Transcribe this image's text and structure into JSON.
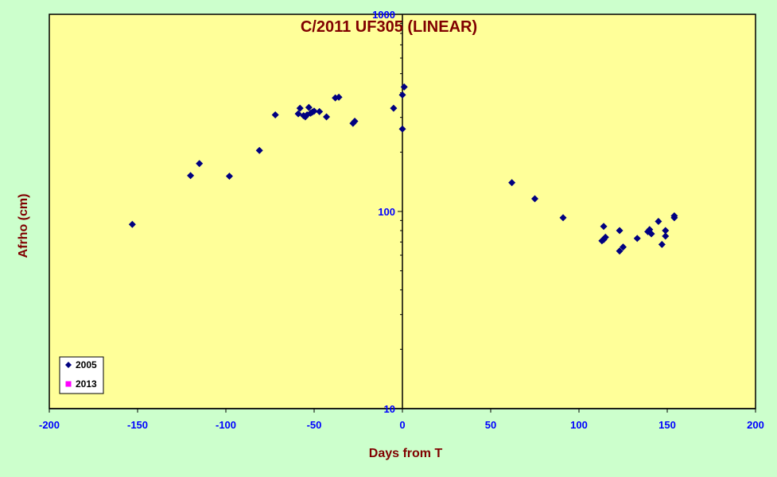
{
  "chart_data": {
    "type": "scatter",
    "title": "C/2011 UF305 (LINEAR)",
    "xlabel": "Days from T",
    "ylabel": "Afrho (cm)",
    "xlim": [
      -200,
      200
    ],
    "ylim": [
      10,
      1000
    ],
    "yscale": "log",
    "x_ticks": [
      "-200",
      "-150",
      "-100",
      "-50",
      "0",
      "50",
      "100",
      "150",
      "200"
    ],
    "y_ticks": [
      "10",
      "100",
      "1000"
    ],
    "grid": false,
    "legend_position": "bottom-left",
    "colors": {
      "background": "#ccffcc",
      "plot_area": "#ffff99",
      "title": "#800000",
      "tick_labels": "#0000ff",
      "series_2005": "#000080",
      "series_2013": "#ff00ff"
    },
    "series": [
      {
        "name": "2005",
        "marker": "diamond",
        "points": [
          [
            -153,
            86
          ],
          [
            -120,
            152
          ],
          [
            -115,
            175
          ],
          [
            -98,
            151
          ],
          [
            -81,
            204
          ],
          [
            -72,
            309
          ],
          [
            -59,
            313
          ],
          [
            -58,
            334
          ],
          [
            -56,
            306
          ],
          [
            -55,
            302
          ],
          [
            -54,
            309
          ],
          [
            -53,
            337
          ],
          [
            -52,
            315
          ],
          [
            -51,
            319
          ],
          [
            -50,
            323
          ],
          [
            -47,
            321
          ],
          [
            -43,
            302
          ],
          [
            -38,
            377
          ],
          [
            -36,
            380
          ],
          [
            -28,
            280
          ],
          [
            -27,
            287
          ],
          [
            -5,
            334
          ],
          [
            0,
            262
          ],
          [
            0,
            390
          ],
          [
            1,
            428
          ],
          [
            62,
            140
          ],
          [
            75,
            116
          ],
          [
            91,
            93
          ],
          [
            113,
            71
          ],
          [
            114,
            72
          ],
          [
            114,
            84
          ],
          [
            115,
            74
          ],
          [
            123,
            63
          ],
          [
            123,
            80
          ],
          [
            125,
            66
          ],
          [
            133,
            73
          ],
          [
            139,
            79
          ],
          [
            140,
            81
          ],
          [
            141,
            77
          ],
          [
            145,
            89
          ],
          [
            147,
            68
          ],
          [
            149,
            80
          ],
          [
            149,
            75
          ],
          [
            154,
            93
          ],
          [
            154,
            95
          ]
        ]
      },
      {
        "name": "2013",
        "marker": "square",
        "points": []
      }
    ]
  }
}
